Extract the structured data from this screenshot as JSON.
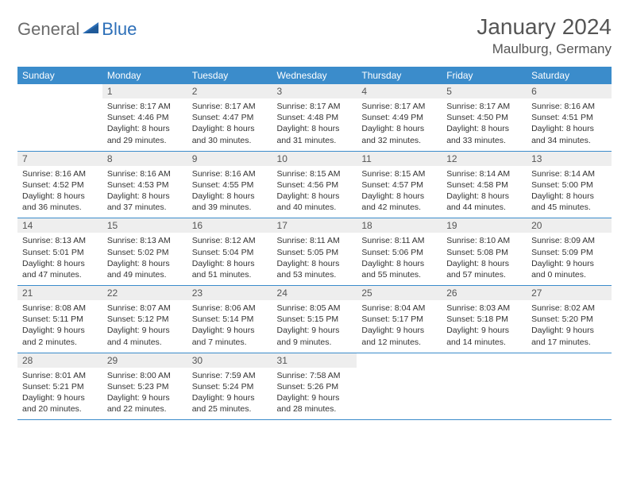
{
  "brand": {
    "part1": "General",
    "part2": "Blue"
  },
  "title": "January 2024",
  "location": "Maulburg, Germany",
  "colors": {
    "header_bg": "#3b8ccb",
    "header_text": "#ffffff",
    "daynum_bg": "#eeeeee",
    "text": "#333333",
    "brand_gray": "#6b6b6b",
    "brand_blue": "#2d6fb8",
    "row_divider": "#3b8ccb"
  },
  "day_names": [
    "Sunday",
    "Monday",
    "Tuesday",
    "Wednesday",
    "Thursday",
    "Friday",
    "Saturday"
  ],
  "weeks": [
    [
      null,
      {
        "n": "1",
        "sr": "8:17 AM",
        "ss": "4:46 PM",
        "dl": "8 hours and 29 minutes."
      },
      {
        "n": "2",
        "sr": "8:17 AM",
        "ss": "4:47 PM",
        "dl": "8 hours and 30 minutes."
      },
      {
        "n": "3",
        "sr": "8:17 AM",
        "ss": "4:48 PM",
        "dl": "8 hours and 31 minutes."
      },
      {
        "n": "4",
        "sr": "8:17 AM",
        "ss": "4:49 PM",
        "dl": "8 hours and 32 minutes."
      },
      {
        "n": "5",
        "sr": "8:17 AM",
        "ss": "4:50 PM",
        "dl": "8 hours and 33 minutes."
      },
      {
        "n": "6",
        "sr": "8:16 AM",
        "ss": "4:51 PM",
        "dl": "8 hours and 34 minutes."
      }
    ],
    [
      {
        "n": "7",
        "sr": "8:16 AM",
        "ss": "4:52 PM",
        "dl": "8 hours and 36 minutes."
      },
      {
        "n": "8",
        "sr": "8:16 AM",
        "ss": "4:53 PM",
        "dl": "8 hours and 37 minutes."
      },
      {
        "n": "9",
        "sr": "8:16 AM",
        "ss": "4:55 PM",
        "dl": "8 hours and 39 minutes."
      },
      {
        "n": "10",
        "sr": "8:15 AM",
        "ss": "4:56 PM",
        "dl": "8 hours and 40 minutes."
      },
      {
        "n": "11",
        "sr": "8:15 AM",
        "ss": "4:57 PM",
        "dl": "8 hours and 42 minutes."
      },
      {
        "n": "12",
        "sr": "8:14 AM",
        "ss": "4:58 PM",
        "dl": "8 hours and 44 minutes."
      },
      {
        "n": "13",
        "sr": "8:14 AM",
        "ss": "5:00 PM",
        "dl": "8 hours and 45 minutes."
      }
    ],
    [
      {
        "n": "14",
        "sr": "8:13 AM",
        "ss": "5:01 PM",
        "dl": "8 hours and 47 minutes."
      },
      {
        "n": "15",
        "sr": "8:13 AM",
        "ss": "5:02 PM",
        "dl": "8 hours and 49 minutes."
      },
      {
        "n": "16",
        "sr": "8:12 AM",
        "ss": "5:04 PM",
        "dl": "8 hours and 51 minutes."
      },
      {
        "n": "17",
        "sr": "8:11 AM",
        "ss": "5:05 PM",
        "dl": "8 hours and 53 minutes."
      },
      {
        "n": "18",
        "sr": "8:11 AM",
        "ss": "5:06 PM",
        "dl": "8 hours and 55 minutes."
      },
      {
        "n": "19",
        "sr": "8:10 AM",
        "ss": "5:08 PM",
        "dl": "8 hours and 57 minutes."
      },
      {
        "n": "20",
        "sr": "8:09 AM",
        "ss": "5:09 PM",
        "dl": "9 hours and 0 minutes."
      }
    ],
    [
      {
        "n": "21",
        "sr": "8:08 AM",
        "ss": "5:11 PM",
        "dl": "9 hours and 2 minutes."
      },
      {
        "n": "22",
        "sr": "8:07 AM",
        "ss": "5:12 PM",
        "dl": "9 hours and 4 minutes."
      },
      {
        "n": "23",
        "sr": "8:06 AM",
        "ss": "5:14 PM",
        "dl": "9 hours and 7 minutes."
      },
      {
        "n": "24",
        "sr": "8:05 AM",
        "ss": "5:15 PM",
        "dl": "9 hours and 9 minutes."
      },
      {
        "n": "25",
        "sr": "8:04 AM",
        "ss": "5:17 PM",
        "dl": "9 hours and 12 minutes."
      },
      {
        "n": "26",
        "sr": "8:03 AM",
        "ss": "5:18 PM",
        "dl": "9 hours and 14 minutes."
      },
      {
        "n": "27",
        "sr": "8:02 AM",
        "ss": "5:20 PM",
        "dl": "9 hours and 17 minutes."
      }
    ],
    [
      {
        "n": "28",
        "sr": "8:01 AM",
        "ss": "5:21 PM",
        "dl": "9 hours and 20 minutes."
      },
      {
        "n": "29",
        "sr": "8:00 AM",
        "ss": "5:23 PM",
        "dl": "9 hours and 22 minutes."
      },
      {
        "n": "30",
        "sr": "7:59 AM",
        "ss": "5:24 PM",
        "dl": "9 hours and 25 minutes."
      },
      {
        "n": "31",
        "sr": "7:58 AM",
        "ss": "5:26 PM",
        "dl": "9 hours and 28 minutes."
      },
      null,
      null,
      null
    ]
  ],
  "labels": {
    "sunrise": "Sunrise: ",
    "sunset": "Sunset: ",
    "daylight": "Daylight: "
  }
}
